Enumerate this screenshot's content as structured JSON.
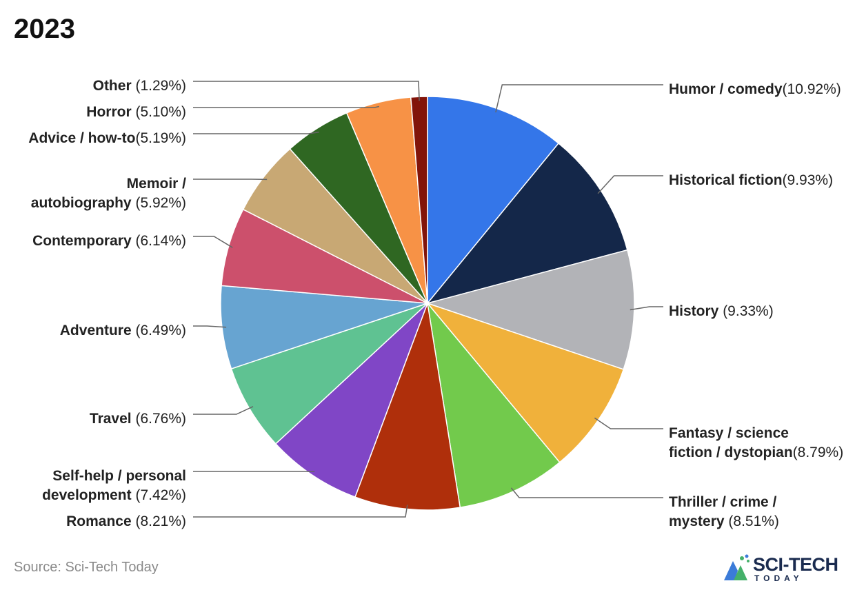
{
  "title": "2023",
  "source": "Source: Sci-Tech Today",
  "logo": {
    "word": "SCI-TECH",
    "sub": "TODAY"
  },
  "chart_data": {
    "type": "pie",
    "title": "2023",
    "start_angle_deg": 0,
    "direction": "clockwise",
    "slices": [
      {
        "name": "Humor / comedy",
        "value": 10.92,
        "pct": "10.92%",
        "color": "#3476E9"
      },
      {
        "name": "Historical fiction",
        "value": 9.93,
        "pct": "9.93%",
        "color": "#142749"
      },
      {
        "name": "History",
        "value": 9.33,
        "pct": "9.33%",
        "color": "#B2B3B7"
      },
      {
        "name": "Fantasy / science fiction / dystopian",
        "value": 8.79,
        "pct": "8.79%",
        "color": "#F0B13B"
      },
      {
        "name": "Thriller / crime / mystery",
        "value": 8.51,
        "pct": "8.51%",
        "color": "#72CA4C"
      },
      {
        "name": "Romance",
        "value": 8.21,
        "pct": "8.21%",
        "color": "#AF2F0B"
      },
      {
        "name": "Self-help / personal development",
        "value": 7.42,
        "pct": "7.42%",
        "color": "#8046C6"
      },
      {
        "name": "Travel",
        "value": 6.76,
        "pct": "6.76%",
        "color": "#5FC292"
      },
      {
        "name": "Adventure",
        "value": 6.49,
        "pct": "6.49%",
        "color": "#67A4D1"
      },
      {
        "name": "Contemporary",
        "value": 6.14,
        "pct": "6.14%",
        "color": "#CC506C"
      },
      {
        "name": "Memoir / autobiography",
        "value": 5.92,
        "pct": "5.92%",
        "color": "#C8A874"
      },
      {
        "name": "Advice / how-to",
        "value": 5.19,
        "pct": "5.19%",
        "color": "#2F6722"
      },
      {
        "name": "Horror",
        "value": 5.1,
        "pct": "5.10%",
        "color": "#F79246"
      },
      {
        "name": "Other",
        "value": 1.29,
        "pct": "1.29%",
        "color": "#82140A"
      }
    ]
  }
}
